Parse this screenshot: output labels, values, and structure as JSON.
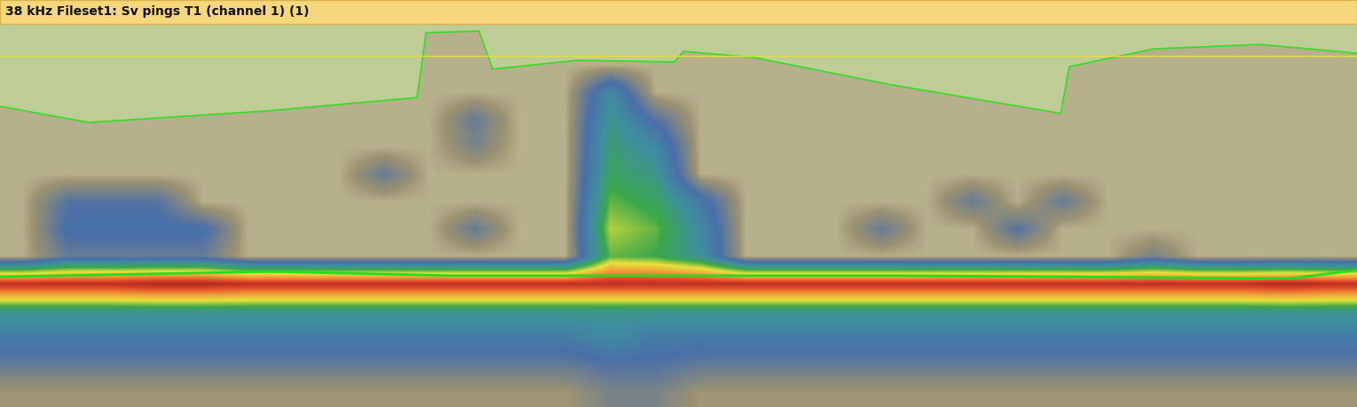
{
  "chart_data": {
    "type": "heatmap",
    "title": "38 kHz Fileset1: Sv pings T1 (channel 1) (1)",
    "xlim": [
      0,
      30
    ],
    "ylim": [
      14,
      0
    ],
    "tick_labels": false,
    "color_range": [
      -70,
      -36
    ],
    "cells": [
      [
        -67,
        -67,
        -67,
        -67,
        -67,
        -67,
        -67,
        -67,
        -67,
        -67,
        -67,
        -67,
        -67,
        -67,
        -67,
        -67,
        -67,
        -67,
        -67,
        -67,
        -67,
        -67,
        -67,
        -67,
        -67,
        -67,
        -67,
        -67,
        -67,
        -67
      ],
      [
        -67,
        -67,
        -67,
        -67,
        -67,
        -67,
        -67,
        -67,
        -67,
        -67,
        -67,
        -67,
        -67,
        -67,
        -67,
        -67,
        -67,
        -67,
        -67,
        -67,
        -67,
        -67,
        -67,
        -67,
        -67,
        -67,
        -67,
        -67,
        -67,
        -67
      ],
      [
        -67,
        -67,
        -67,
        -67,
        -67,
        -67,
        -67,
        -67,
        -67,
        -67,
        -67,
        -67,
        -67,
        -58,
        -67,
        -67,
        -67,
        -67,
        -67,
        -67,
        -67,
        -67,
        -67,
        -67,
        -67,
        -67,
        -67,
        -67,
        -67,
        -67
      ],
      [
        -67,
        -67,
        -67,
        -67,
        -67,
        -67,
        -67,
        -67,
        -67,
        -67,
        -63,
        -67,
        -67,
        -56,
        -62,
        -67,
        -67,
        -67,
        -67,
        -67,
        -67,
        -67,
        -67,
        -67,
        -67,
        -67,
        -67,
        -67,
        -67,
        -67
      ],
      [
        -67,
        -67,
        -67,
        -67,
        -67,
        -67,
        -67,
        -67,
        -67,
        -67,
        -64,
        -67,
        -67,
        -55,
        -58,
        -67,
        -67,
        -67,
        -67,
        -67,
        -67,
        -67,
        -67,
        -67,
        -67,
        -67,
        -67,
        -67,
        -67,
        -67
      ],
      [
        -67,
        -67,
        -67,
        -67,
        -67,
        -67,
        -67,
        -67,
        -63,
        -67,
        -67,
        -67,
        -67,
        -54,
        -56,
        -67,
        -67,
        -67,
        -67,
        -67,
        -67,
        -67,
        -67,
        -67,
        -67,
        -67,
        -67,
        -67,
        -67,
        -67
      ],
      [
        -67,
        -62,
        -62,
        -62,
        -67,
        -67,
        -67,
        -67,
        -67,
        -67,
        -67,
        -67,
        -67,
        -52,
        -54,
        -60,
        -67,
        -67,
        -67,
        -67,
        -67,
        -63,
        -67,
        -63,
        -67,
        -67,
        -67,
        -67,
        -67,
        -67
      ],
      [
        -67,
        -61,
        -61,
        -61,
        -61,
        -67,
        -67,
        -67,
        -67,
        -67,
        -63,
        -67,
        -67,
        -50,
        -52,
        -58,
        -67,
        -67,
        -67,
        -63,
        -67,
        -67,
        -62,
        -67,
        -67,
        -67,
        -67,
        -67,
        -67,
        -67
      ],
      [
        -67,
        -63,
        -63,
        -63,
        -63,
        -67,
        -67,
        -67,
        -67,
        -67,
        -67,
        -67,
        -67,
        -52,
        -53,
        -57,
        -67,
        -67,
        -67,
        -67,
        -67,
        -67,
        -67,
        -67,
        -67,
        -64,
        -67,
        -67,
        -67,
        -67
      ],
      [
        -38,
        -38,
        -38,
        -37,
        -37,
        -38,
        -38,
        -38,
        -38,
        -38,
        -38,
        -38,
        -38,
        -38,
        -38,
        -38,
        -38,
        -38,
        -38,
        -38,
        -38,
        -38,
        -38,
        -38,
        -38,
        -38,
        -38,
        -38,
        -37,
        -38
      ],
      [
        -56,
        -56,
        -56,
        -56,
        -56,
        -56,
        -56,
        -56,
        -56,
        -56,
        -56,
        -56,
        -56,
        -56,
        -56,
        -56,
        -56,
        -56,
        -56,
        -56,
        -56,
        -56,
        -56,
        -56,
        -56,
        -56,
        -56,
        -56,
        -56,
        -56
      ],
      [
        -60,
        -60,
        -60,
        -60,
        -60,
        -60,
        -60,
        -60,
        -60,
        -60,
        -60,
        -60,
        -60,
        -58,
        -60,
        -60,
        -60,
        -60,
        -60,
        -60,
        -60,
        -60,
        -60,
        -60,
        -60,
        -60,
        -60,
        -60,
        -60,
        -60
      ],
      [
        -63,
        -63,
        -63,
        -63,
        -63,
        -63,
        -63,
        -63,
        -63,
        -63,
        -63,
        -63,
        -63,
        -62,
        -62,
        -63,
        -63,
        -63,
        -63,
        -63,
        -63,
        -63,
        -63,
        -63,
        -63,
        -63,
        -63,
        -63,
        -63,
        -63
      ],
      [
        -66,
        -66,
        -66,
        -66,
        -66,
        -66,
        -66,
        -66,
        -66,
        -66,
        -66,
        -66,
        -66,
        -64,
        -64,
        -66,
        -66,
        -66,
        -66,
        -66,
        -66,
        -66,
        -66,
        -66,
        -66,
        -66,
        -66,
        -66,
        -66,
        -66
      ]
    ],
    "region_boundary": {
      "color": "#33dd22",
      "x": [
        0,
        1.96,
        5.89,
        9.22,
        9.42,
        10.59,
        10.89,
        12.75,
        14.91,
        15.11,
        16.68,
        19.62,
        23.45,
        23.64,
        25.51,
        27.86,
        30
      ],
      "y": [
        3.01,
        3.6,
        3.18,
        2.69,
        0.32,
        0.26,
        1.65,
        1.33,
        1.39,
        1.0,
        1.23,
        2.2,
        3.27,
        1.56,
        0.91,
        0.75,
        1.07
      ]
    },
    "reference_line": {
      "color": "#e6e030",
      "x": [
        0,
        30
      ],
      "y": [
        1.17,
        1.17
      ]
    },
    "bottom_line": {
      "color": "#22dd22",
      "x": [
        0,
        6,
        10,
        20,
        28.5,
        30
      ],
      "y": [
        9.24,
        9.05,
        9.2,
        9.2,
        9.3,
        9.0
      ]
    }
  }
}
